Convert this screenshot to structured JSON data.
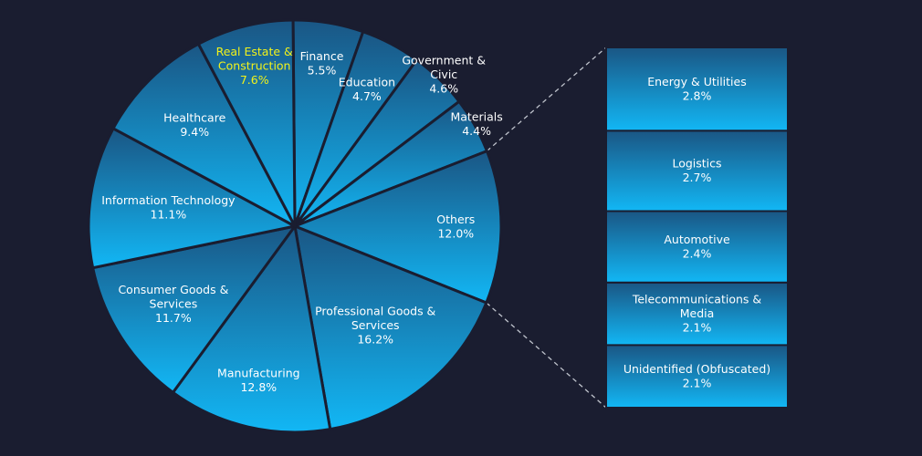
{
  "chart_data": {
    "type": "pie",
    "subtype": "bar-of-pie",
    "slices": [
      {
        "label": "Finance",
        "value": 5.5,
        "value_label": "5.5%"
      },
      {
        "label": "Education",
        "value": 4.7,
        "value_label": "4.7%"
      },
      {
        "label": "Government & Civic",
        "value": 4.6,
        "value_label": "4.6%"
      },
      {
        "label": "Materials",
        "value": 4.4,
        "value_label": "4.4%"
      },
      {
        "label": "Others",
        "value": 12.0,
        "value_label": "12.0%"
      },
      {
        "label": "Professional Goods & Services",
        "value": 16.2,
        "value_label": "16.2%"
      },
      {
        "label": "Manufacturing",
        "value": 12.8,
        "value_label": "12.8%"
      },
      {
        "label": "Consumer Goods & Services",
        "value": 11.7,
        "value_label": "11.7%"
      },
      {
        "label": "Information Technology",
        "value": 11.1,
        "value_label": "11.1%"
      },
      {
        "label": "Healthcare",
        "value": 9.4,
        "value_label": "9.4%"
      },
      {
        "label": "Real Estate & Construction",
        "value": 7.6,
        "value_label": "7.6%",
        "highlight": true
      }
    ],
    "breakdown_of": "Others",
    "breakdown": [
      {
        "label": "Energy & Utilities",
        "value": 2.8,
        "value_label": "2.8%"
      },
      {
        "label": "Logistics",
        "value": 2.7,
        "value_label": "2.7%"
      },
      {
        "label": "Automotive",
        "value": 2.4,
        "value_label": "2.4%"
      },
      {
        "label": "Telecommunications & Media",
        "value": 2.1,
        "value_label": "2.1%"
      },
      {
        "label": "Unidentified (Obfuscated)",
        "value": 2.1,
        "value_label": "2.1%"
      }
    ],
    "colors": {
      "background": "#1a1d30",
      "fill_dark": "#1a5684",
      "fill_light": "#12b7f5",
      "border": "#1a1d30",
      "label": "#ffffff",
      "highlight_label": "#f2f21a",
      "connector": "#bfc3cc"
    },
    "legend": "none"
  }
}
